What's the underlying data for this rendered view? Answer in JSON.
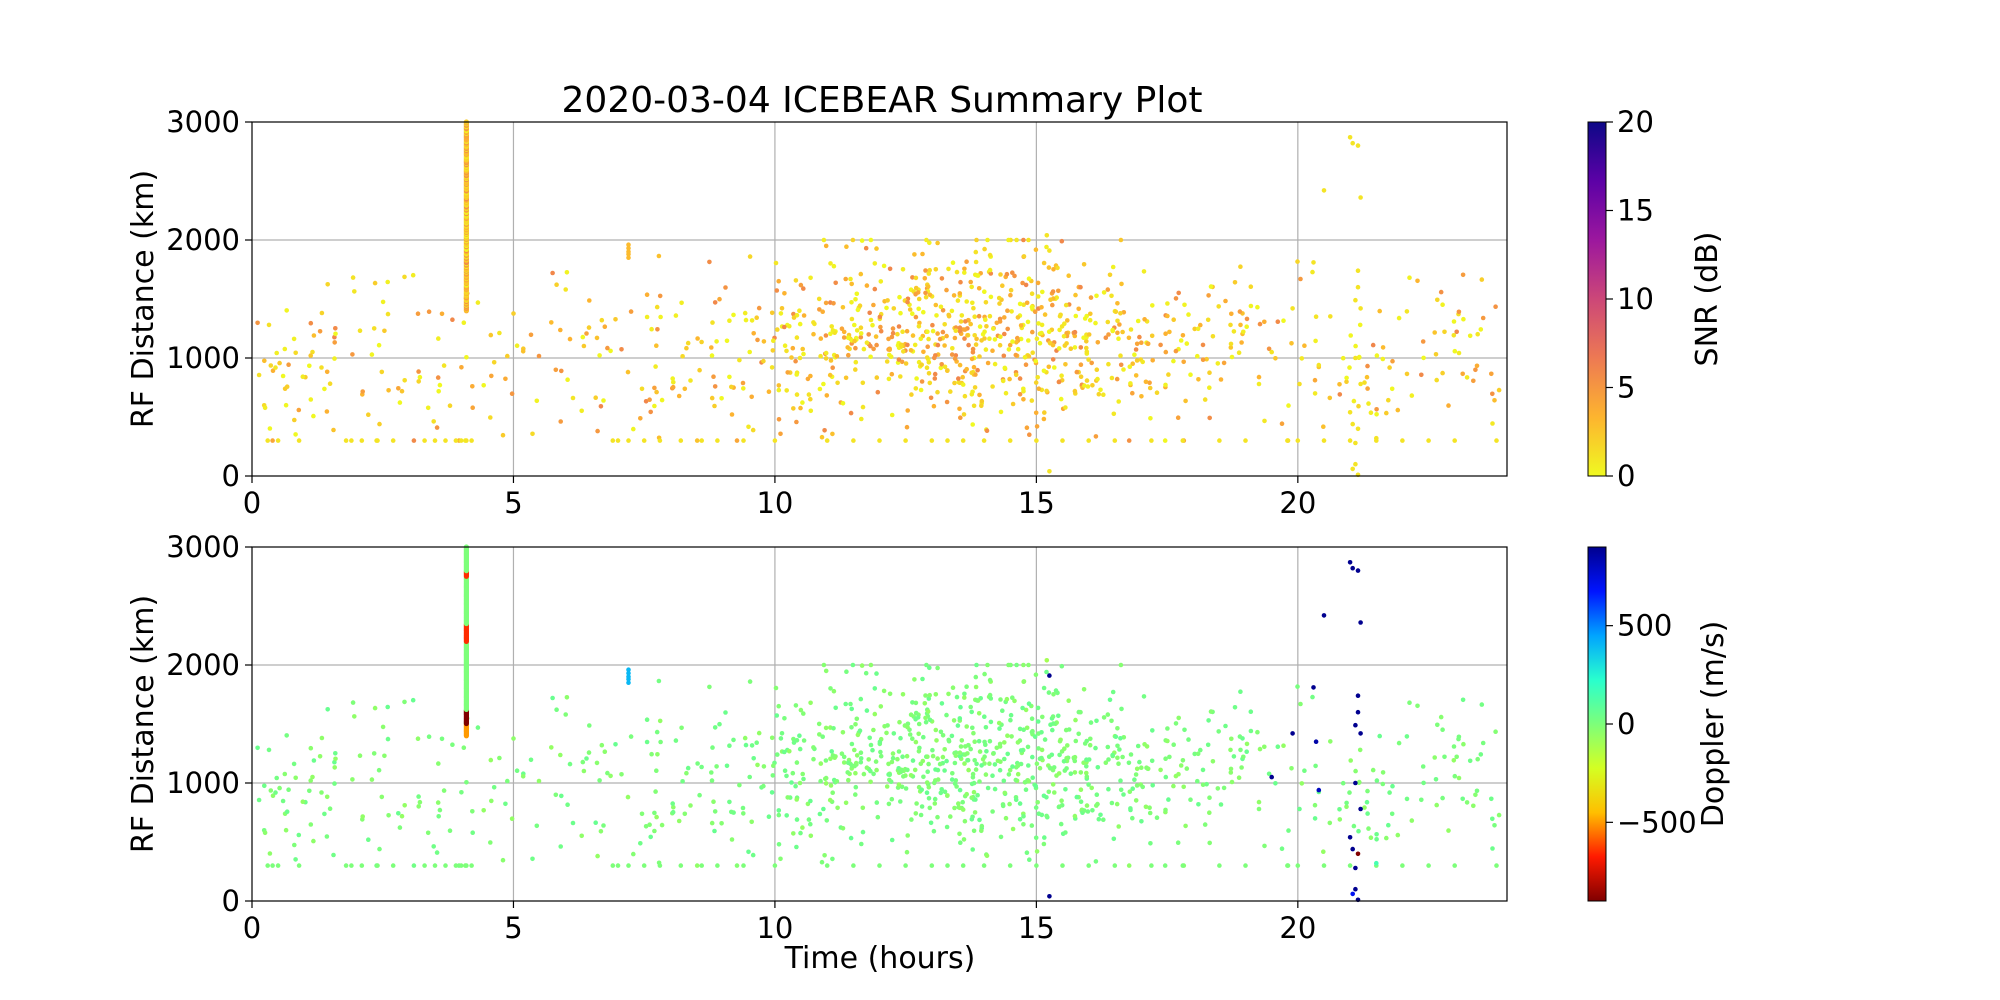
{
  "chart_data": {
    "type": "scatter",
    "title": "2020-03-04 ICEBEAR Summary Plot",
    "xlabel": "Time (hours)",
    "xlim": [
      0,
      24
    ],
    "x_ticks": [
      "0",
      "5",
      "10",
      "15",
      "20"
    ],
    "x_tick_values": [
      0,
      5,
      10,
      15,
      20
    ],
    "grid": true,
    "panels": [
      {
        "ylabel": "RF Distance (km)",
        "ylim": [
          0,
          3000
        ],
        "y_ticks": [
          "0",
          "1000",
          "2000",
          "3000"
        ],
        "y_tick_values": [
          0,
          1000,
          2000,
          3000
        ],
        "colorbar": {
          "label": "SNR (dB)",
          "colormap": "plasma_r",
          "range": [
            0,
            20
          ],
          "ticks": [
            "0",
            "5",
            "10",
            "15",
            "20"
          ],
          "tick_values": [
            0,
            5,
            10,
            15,
            20
          ],
          "colors": [
            "#f0f921",
            "#fdb42f",
            "#ed7953",
            "#cc4778",
            "#9c179e",
            "#5c01a6",
            "#0d0887"
          ]
        },
        "color_by": "snr"
      },
      {
        "ylabel": "RF Distance (km)",
        "ylim": [
          0,
          3000
        ],
        "y_ticks": [
          "0",
          "1000",
          "2000",
          "3000"
        ],
        "y_tick_values": [
          0,
          1000,
          2000,
          3000
        ],
        "colorbar": {
          "label": "Doppler (m/s)",
          "colormap": "jet_r",
          "range": [
            -900,
            900
          ],
          "ticks": [
            "−500",
            "0",
            "500"
          ],
          "tick_values": [
            -500,
            0,
            500
          ],
          "colors": [
            "#800000",
            "#ff1a00",
            "#ffbf00",
            "#d4ff23",
            "#7dff7a",
            "#29ffce",
            "#00a4ff",
            "#0014ff",
            "#00008f"
          ]
        },
        "color_by": "doppler"
      }
    ],
    "series": [
      {
        "kind": "scatter-cloud",
        "count": 1100,
        "x_range": [
          0.1,
          23.9
        ],
        "y_range": [
          300,
          2000
        ],
        "peak_x": 13.5,
        "typical_snr": [
          0,
          6
        ],
        "typical_doppler": [
          -60,
          60
        ]
      },
      {
        "kind": "ground-returns",
        "y": 300,
        "x_values": [
          0.3,
          0.5,
          0.9,
          1.8,
          1.9,
          2.1,
          2.4,
          2.7,
          3.3,
          3.5,
          3.7,
          3.9,
          4.0,
          4.1,
          4.2,
          6.9,
          7.0,
          7.2,
          7.5,
          7.8,
          8.2,
          8.6,
          8.9,
          9.4,
          10.0,
          11.0,
          11.5,
          12.0,
          12.5,
          13.0,
          13.3,
          13.6,
          14.0,
          14.5,
          15.0,
          15.5,
          16.0,
          16.5,
          17.2,
          17.8,
          18.5,
          19.0,
          19.8,
          20.0,
          20.5,
          21.0,
          21.5,
          22.0,
          22.5,
          23.0,
          23.8
        ],
        "snr": 1,
        "doppler": 0
      },
      {
        "kind": "vertical-streak",
        "x": 4.1,
        "y_range": [
          1400,
          3000
        ],
        "snr_range": [
          0,
          6
        ],
        "doppler_segments": [
          {
            "y_from": 1400,
            "y_to": 1500,
            "doppler": -500
          },
          {
            "y_from": 1500,
            "y_to": 1620,
            "doppler": -900
          },
          {
            "y_from": 1620,
            "y_to": 2200,
            "doppler": 0
          },
          {
            "y_from": 2200,
            "y_to": 2350,
            "doppler": -650
          },
          {
            "y_from": 2350,
            "y_to": 2750,
            "doppler": 0
          },
          {
            "y_from": 2750,
            "y_to": 2800,
            "doppler": -650
          },
          {
            "y_from": 2800,
            "y_to": 3000,
            "doppler": 0
          }
        ]
      },
      {
        "kind": "cluster",
        "x": 7.2,
        "y_values": [
          1850,
          1880,
          1900,
          1930,
          1960
        ],
        "snr": 3,
        "doppler": 400
      },
      {
        "kind": "fast-echoes",
        "points": [
          {
            "x": 15.25,
            "y": 1910,
            "doppler": 900
          },
          {
            "x": 15.25,
            "y": 40,
            "doppler": 900
          },
          {
            "x": 15.2,
            "y": 2040,
            "doppler": -100
          },
          {
            "x": 19.5,
            "y": 1050,
            "doppler": 900
          },
          {
            "x": 19.9,
            "y": 1420,
            "doppler": 900
          },
          {
            "x": 20.3,
            "y": 1810,
            "doppler": 900
          },
          {
            "x": 20.35,
            "y": 1350,
            "doppler": 850
          },
          {
            "x": 20.4,
            "y": 940,
            "doppler": 800
          },
          {
            "x": 20.5,
            "y": 2420,
            "doppler": 900
          },
          {
            "x": 21.0,
            "y": 2870,
            "doppler": 900
          },
          {
            "x": 21.05,
            "y": 2820,
            "doppler": 900
          },
          {
            "x": 21.15,
            "y": 2800,
            "doppler": 900
          },
          {
            "x": 21.1,
            "y": 1490,
            "doppler": 900
          },
          {
            "x": 21.15,
            "y": 1740,
            "doppler": 900
          },
          {
            "x": 21.15,
            "y": 1600,
            "doppler": 900
          },
          {
            "x": 21.2,
            "y": 2360,
            "doppler": 900
          },
          {
            "x": 21.2,
            "y": 1420,
            "doppler": 900
          },
          {
            "x": 21.1,
            "y": 1000,
            "doppler": 900
          },
          {
            "x": 21.2,
            "y": 780,
            "doppler": 900
          },
          {
            "x": 21.0,
            "y": 540,
            "doppler": 900
          },
          {
            "x": 21.05,
            "y": 440,
            "doppler": 900
          },
          {
            "x": 21.15,
            "y": 400,
            "doppler": -900
          },
          {
            "x": 21.1,
            "y": 280,
            "doppler": 900
          },
          {
            "x": 21.1,
            "y": 100,
            "doppler": 900
          },
          {
            "x": 21.05,
            "y": 60,
            "doppler": 700
          },
          {
            "x": 21.15,
            "y": 10,
            "doppler": 900
          },
          {
            "x": 21.5,
            "y": 320,
            "doppler": 150
          }
        ],
        "snr": 1
      }
    ]
  }
}
